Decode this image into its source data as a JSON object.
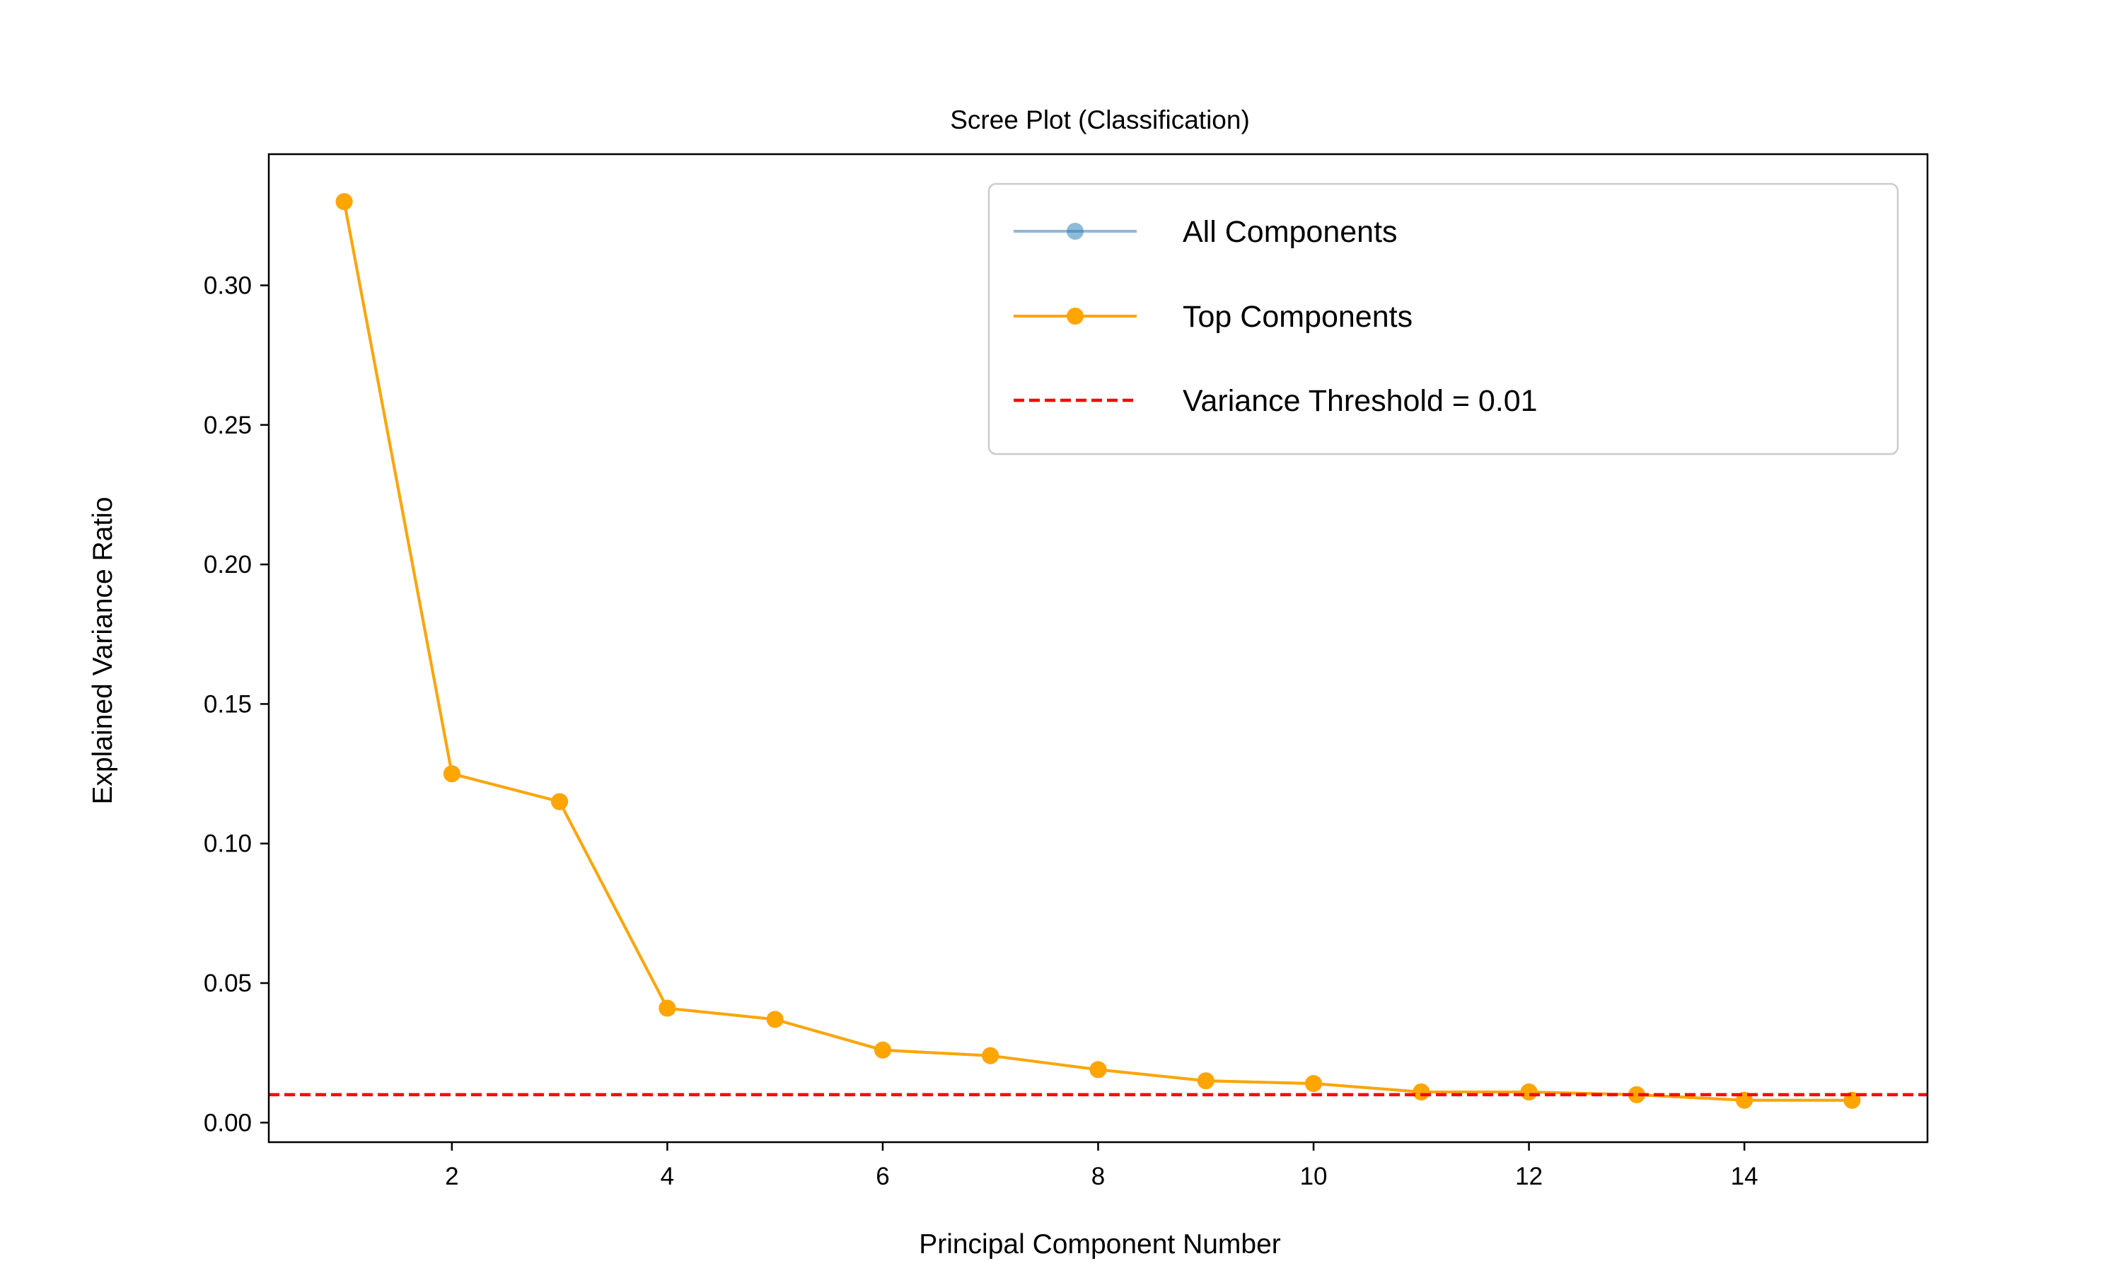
{
  "chart_data": {
    "type": "line",
    "title": "Scree Plot (Classification)",
    "xlabel": "Principal Component Number",
    "ylabel": "Explained Variance Ratio",
    "xlim": [
      0.3,
      15.7
    ],
    "ylim": [
      -0.007,
      0.347
    ],
    "x_ticks": [
      2,
      4,
      6,
      8,
      10,
      12,
      14
    ],
    "y_ticks": [
      0.0,
      0.05,
      0.1,
      0.15,
      0.2,
      0.25,
      0.3
    ],
    "y_tick_labels": [
      "0.00",
      "0.05",
      "0.10",
      "0.15",
      "0.20",
      "0.25",
      "0.30"
    ],
    "grid": false,
    "legend_position": "top-right",
    "series": [
      {
        "name": "All Components",
        "color": "#1f77b4",
        "x": [
          1,
          2,
          3,
          4,
          5,
          6,
          7,
          8,
          9,
          10,
          11,
          12,
          13,
          14,
          15
        ],
        "values": [
          0.33,
          0.125,
          0.115,
          0.041,
          0.037,
          0.026,
          0.024,
          0.019,
          0.015,
          0.014,
          0.011,
          0.011,
          0.01,
          0.008,
          0.008
        ]
      },
      {
        "name": "Top Components",
        "color": "#ffa500",
        "x": [
          1,
          2,
          3,
          4,
          5,
          6,
          7,
          8,
          9,
          10,
          11,
          12,
          13,
          14,
          15
        ],
        "values": [
          0.33,
          0.125,
          0.115,
          0.041,
          0.037,
          0.026,
          0.024,
          0.019,
          0.015,
          0.014,
          0.011,
          0.011,
          0.01,
          0.008,
          0.008
        ]
      }
    ],
    "threshold": {
      "name": "Variance Threshold = 0.01",
      "value": 0.01,
      "color": "#ff0000",
      "style": "dashed"
    }
  }
}
